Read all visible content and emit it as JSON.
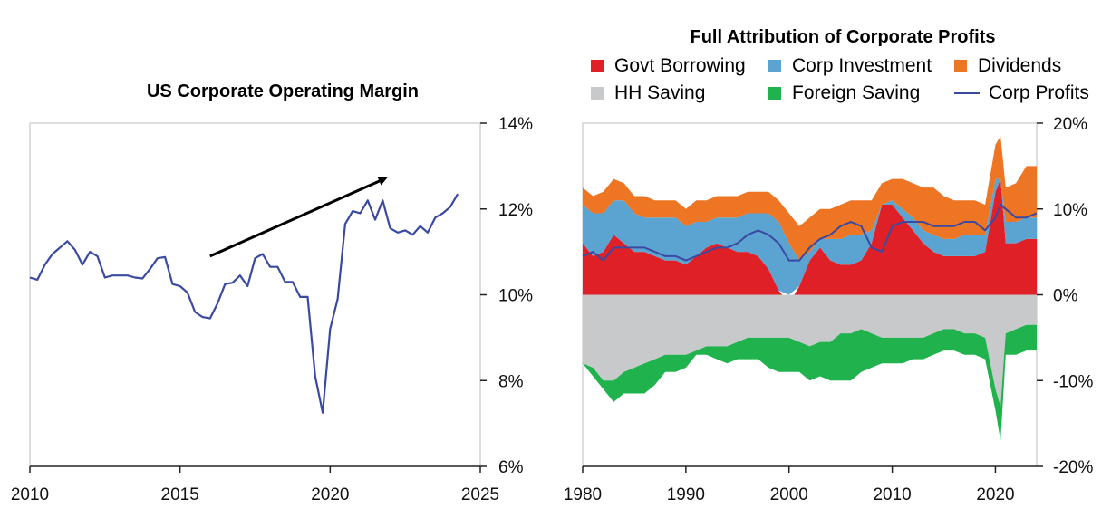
{
  "chart_data": [
    {
      "type": "line",
      "title": "US Corporate Operating Margin",
      "xlim": [
        2010,
        2025
      ],
      "ylim": [
        6,
        14
      ],
      "x_ticks": [
        "2010",
        "2015",
        "2020",
        "2025"
      ],
      "y_ticks": [
        "6%",
        "8%",
        "10%",
        "12%",
        "14%"
      ],
      "y_axis_side": "right",
      "color": "#3a4aa0",
      "annotation": "upward arrow from 2016 to 2022",
      "series": [
        {
          "x": [
            2010.0,
            2010.25,
            2010.5,
            2010.75,
            2011.0,
            2011.25,
            2011.5,
            2011.75,
            2012.0,
            2012.25,
            2012.5,
            2012.75,
            2013.0,
            2013.25,
            2013.5,
            2013.75,
            2014.0,
            2014.25,
            2014.5,
            2014.75,
            2015.0,
            2015.25,
            2015.5,
            2015.75,
            2016.0,
            2016.25,
            2016.5,
            2016.75,
            2017.0,
            2017.25,
            2017.5,
            2017.75,
            2018.0,
            2018.25,
            2018.5,
            2018.75,
            2019.0,
            2019.25,
            2019.5,
            2019.75,
            2020.0,
            2020.25,
            2020.5,
            2020.75,
            2021.0,
            2021.25,
            2021.5,
            2021.75,
            2022.0,
            2022.25,
            2022.5,
            2022.75,
            2023.0,
            2023.25,
            2023.5,
            2023.75,
            2024.0,
            2024.25,
            2024.5,
            2024.75
          ],
          "values": [
            10.4,
            10.35,
            10.7,
            10.95,
            11.1,
            11.25,
            11.05,
            10.7,
            11.0,
            10.9,
            10.4,
            10.45,
            10.45,
            10.45,
            10.4,
            10.38,
            10.6,
            10.85,
            10.88,
            10.25,
            10.2,
            10.05,
            9.6,
            9.48,
            9.45,
            9.8,
            10.25,
            10.28,
            10.45,
            10.2,
            10.85,
            10.95,
            10.65,
            10.65,
            10.3,
            10.3,
            9.95,
            9.95,
            8.1,
            7.25,
            9.2,
            9.9,
            11.65,
            11.95,
            11.9,
            12.2,
            11.75,
            12.2,
            11.55,
            11.45,
            11.5,
            11.4,
            11.6,
            11.45,
            11.8,
            11.9,
            12.05,
            12.35,
            null,
            null
          ]
        }
      ]
    },
    {
      "type": "area",
      "title": "Full Attribution of Corporate Profits",
      "xlim": [
        1980,
        2024
      ],
      "ylim": [
        -20,
        20
      ],
      "x_ticks": [
        "1980",
        "1990",
        "2000",
        "2010",
        "2020"
      ],
      "y_ticks": [
        "-20%",
        "-10%",
        "0%",
        "10%",
        "20%"
      ],
      "y_axis_side": "right",
      "x": [
        1980,
        1981,
        1982,
        1983,
        1984,
        1985,
        1986,
        1987,
        1988,
        1989,
        1990,
        1991,
        1992,
        1993,
        1994,
        1995,
        1996,
        1997,
        1998,
        1999,
        2000,
        2001,
        2002,
        2003,
        2004,
        2005,
        2006,
        2007,
        2008,
        2009,
        2010,
        2011,
        2012,
        2013,
        2014,
        2015,
        2016,
        2017,
        2018,
        2019,
        2020,
        2020.5,
        2021,
        2022,
        2023,
        2024
      ],
      "series": [
        {
          "name": "Govt Borrowing",
          "color": "#e02027",
          "values": [
            6,
            4.5,
            5,
            7,
            6,
            5,
            5,
            4.5,
            4,
            4,
            3.5,
            4.5,
            5.5,
            6,
            5.5,
            5,
            5,
            4.5,
            3,
            0.5,
            -1,
            1,
            4,
            5.5,
            4,
            3.5,
            3.5,
            4,
            6,
            10.5,
            10.5,
            9,
            7.5,
            6,
            5,
            4.5,
            4.5,
            4.5,
            4.5,
            5,
            12,
            13.5,
            6,
            6,
            6.5,
            6.5
          ]
        },
        {
          "name": "Corp Investment",
          "color": "#5ba3d0",
          "values": [
            4.5,
            5,
            4.5,
            4,
            5,
            4.5,
            4,
            4.5,
            5,
            5,
            4.5,
            4,
            3,
            3,
            3.5,
            4,
            4.5,
            5,
            6.5,
            8,
            6,
            3,
            1,
            1,
            2.5,
            3,
            3.5,
            3,
            1.5,
            0,
            0.5,
            1,
            1.5,
            1.5,
            2,
            2,
            2,
            2.5,
            2.5,
            2,
            1.5,
            0,
            2.5,
            2.5,
            2.5,
            2.5
          ]
        },
        {
          "name": "Dividends",
          "color": "#ee7523",
          "values": [
            2,
            2,
            2.5,
            2.5,
            2,
            2,
            2.5,
            2,
            2,
            2,
            2,
            2.5,
            2.5,
            2.5,
            2.5,
            2.5,
            2.5,
            2.5,
            2.5,
            2.5,
            3.5,
            4,
            4,
            3.5,
            3.5,
            4,
            4,
            4,
            3.5,
            2.5,
            2.5,
            3.5,
            4,
            5,
            5.5,
            5,
            4.5,
            4,
            4,
            3.5,
            4,
            5,
            4,
            4.5,
            6,
            6
          ]
        },
        {
          "name": "HH Saving",
          "color": "#c8c9cb",
          "values": [
            -8,
            -8.5,
            -10,
            -10,
            -9,
            -8.5,
            -8,
            -7.5,
            -7,
            -7,
            -7,
            -6.5,
            -6,
            -6,
            -6,
            -5.5,
            -5,
            -5,
            -5,
            -5,
            -5,
            -5.5,
            -6,
            -5.5,
            -5.5,
            -4.5,
            -4.5,
            -4,
            -4.5,
            -5,
            -5,
            -5,
            -5,
            -5,
            -4.5,
            -4,
            -4,
            -4.5,
            -4.5,
            -5,
            -11,
            -13,
            -4.5,
            -4,
            -3.5,
            -3.5
          ]
        },
        {
          "name": "Foreign Saving",
          "color": "#20b24c",
          "values": [
            0,
            -1,
            -1,
            -2.5,
            -2.5,
            -3,
            -3.5,
            -3,
            -2,
            -2,
            -1.5,
            -0.5,
            -1,
            -1.5,
            -2,
            -2,
            -2.5,
            -2.5,
            -3.5,
            -4,
            -4,
            -3.5,
            -4,
            -4,
            -4.5,
            -5.5,
            -5.5,
            -5,
            -4,
            -3,
            -3,
            -3,
            -2.5,
            -2.5,
            -2.5,
            -2.5,
            -2.5,
            -2.5,
            -2.5,
            -2.5,
            -2.5,
            -4,
            -2.5,
            -3,
            -3,
            -3
          ]
        },
        {
          "name": "Corp Profits",
          "color": "#3a4aa0",
          "values": [
            4.5,
            5,
            4,
            5.5,
            5.5,
            5.5,
            5.5,
            5,
            4.5,
            4.5,
            4,
            4.5,
            5,
            5.5,
            5.5,
            6,
            7,
            7.5,
            7,
            6,
            4,
            4,
            5.5,
            6.5,
            7,
            8,
            8.5,
            8,
            5.5,
            5,
            8,
            8.5,
            8.5,
            8.5,
            8,
            8,
            8,
            8.5,
            8.5,
            7.5,
            9,
            10.5,
            10,
            9,
            9,
            9.5
          ]
        }
      ]
    }
  ]
}
